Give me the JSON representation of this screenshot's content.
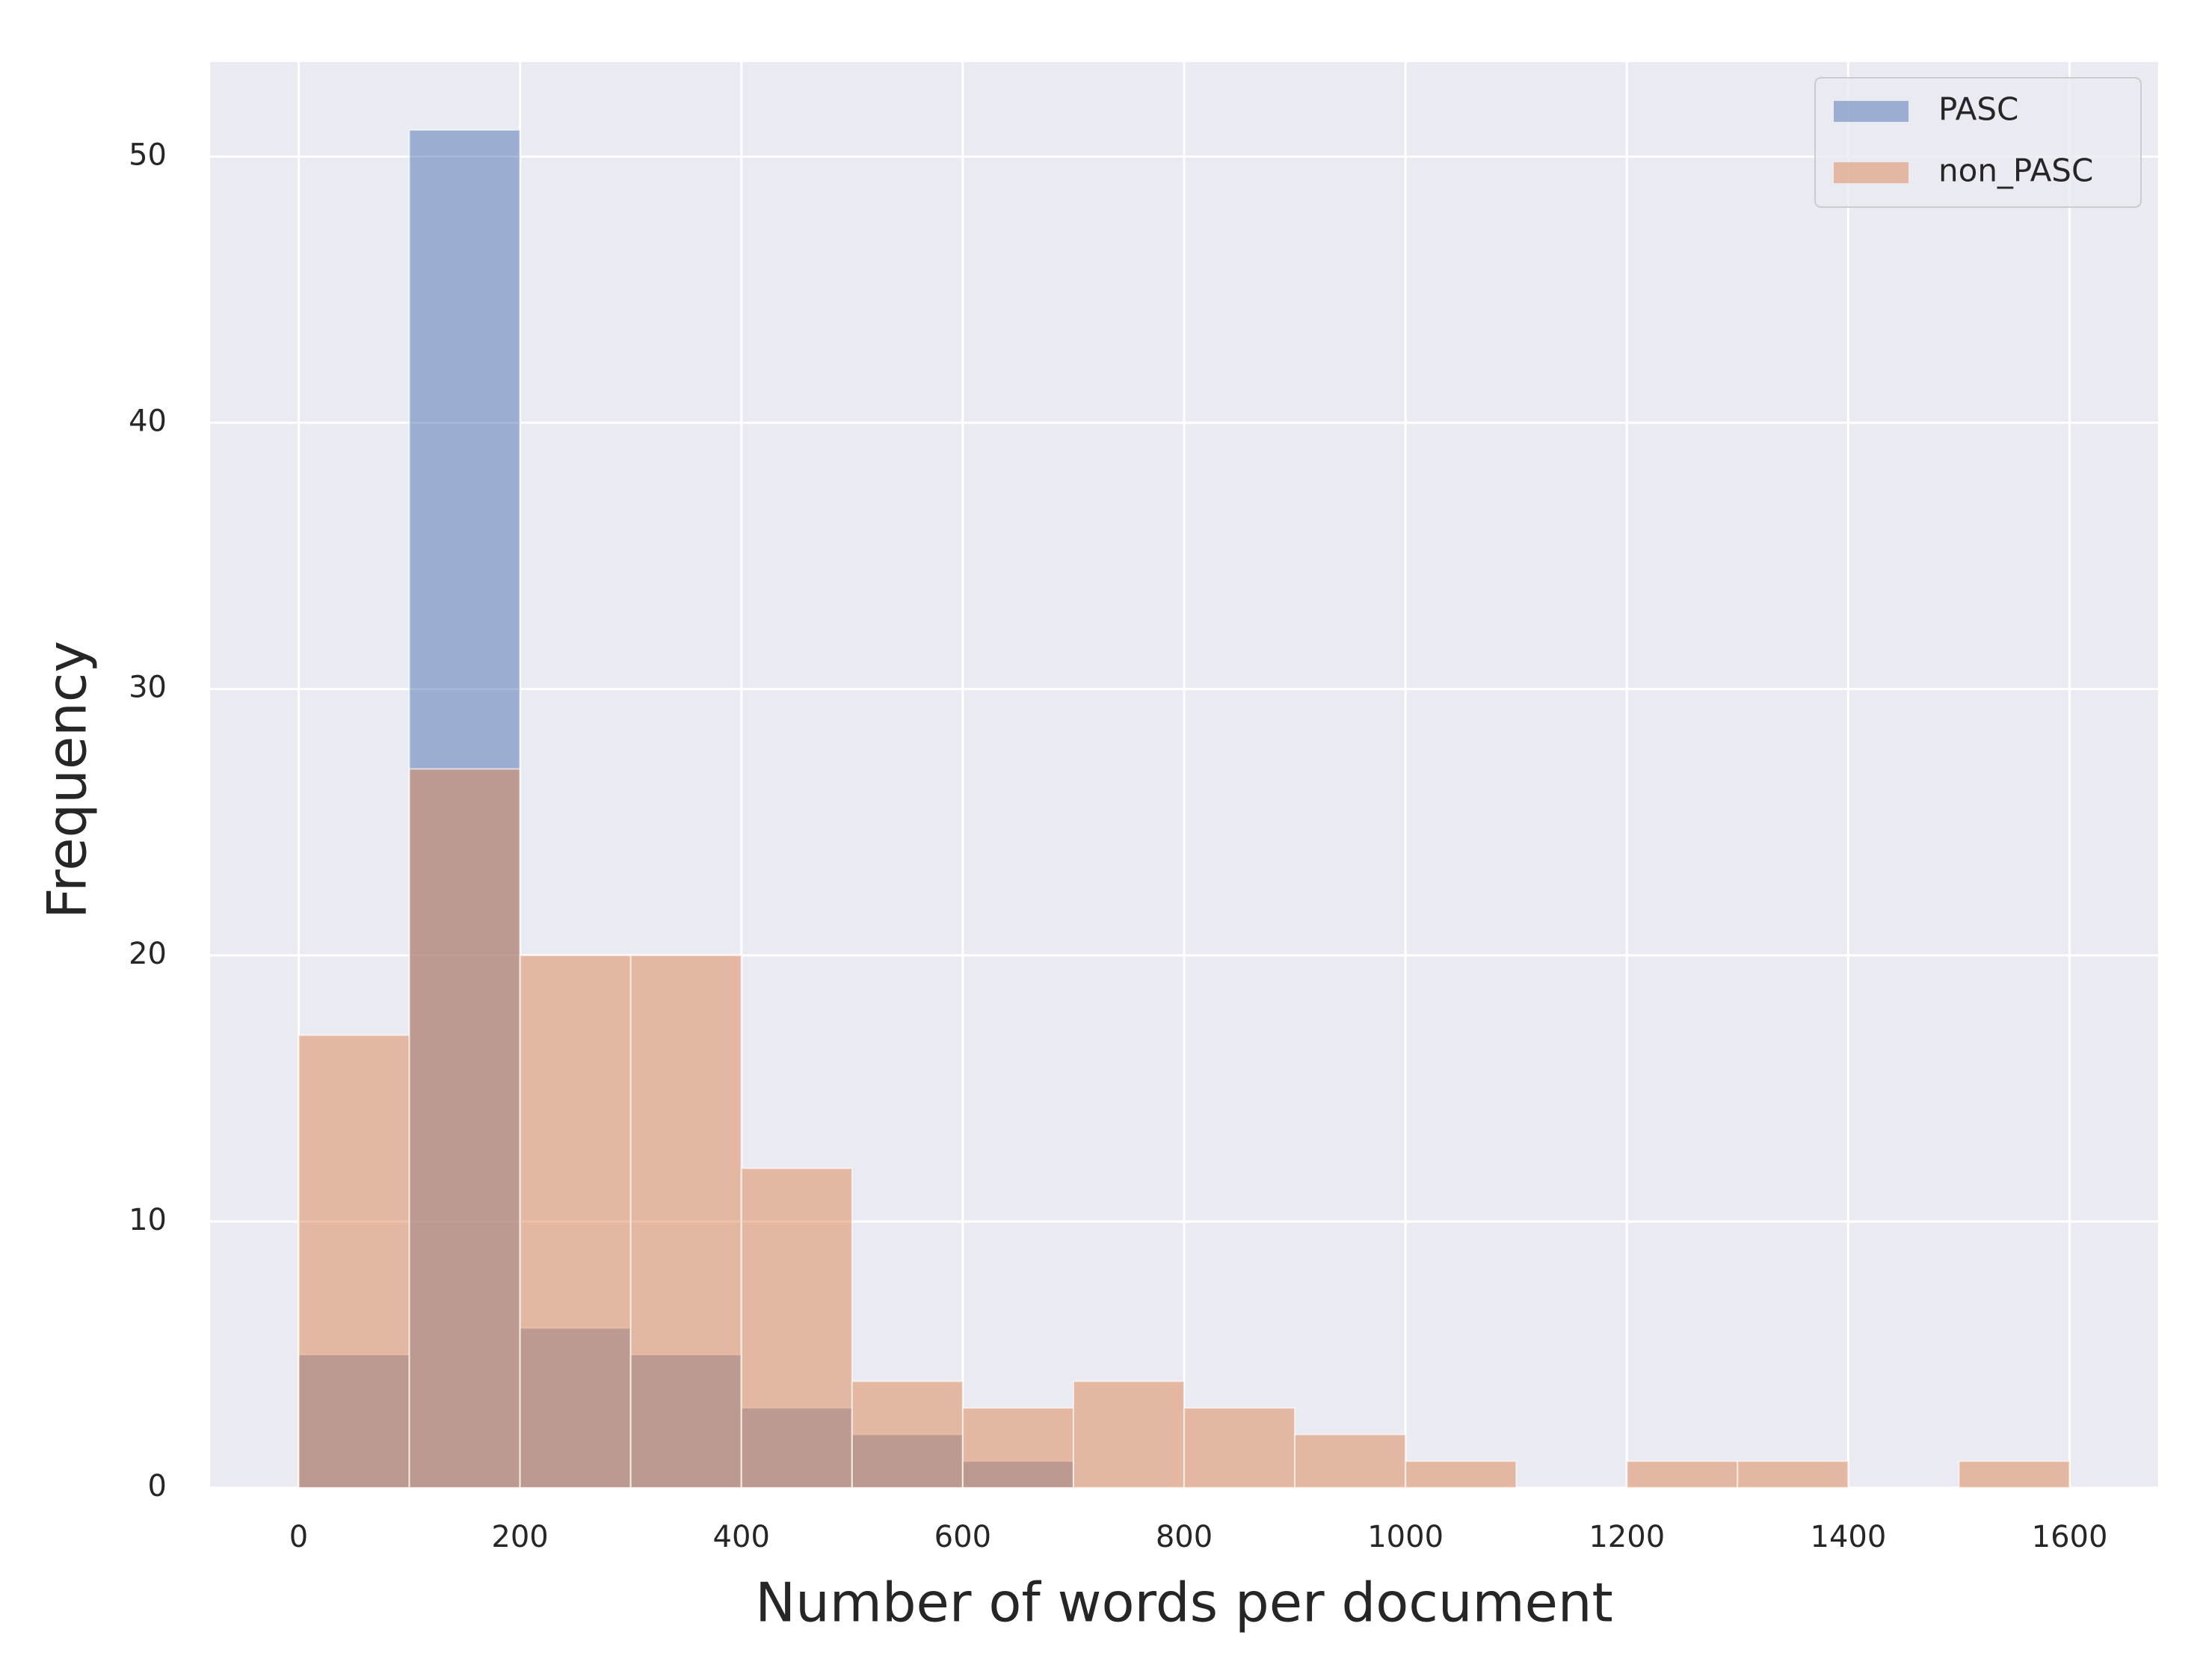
{
  "chart_data": {
    "type": "histogram",
    "xlabel": "Number of words per document",
    "ylabel": "Frequency",
    "bins": [
      0,
      100,
      200,
      300,
      400,
      500,
      600,
      700,
      800,
      900,
      1000,
      1100,
      1200,
      1300,
      1400,
      1500,
      1600
    ],
    "series": [
      {
        "name": "PASC",
        "color": "#4c72b0",
        "values": [
          5,
          51,
          6,
          5,
          3,
          2,
          1,
          0,
          0,
          0,
          0,
          0,
          0,
          0,
          0,
          0
        ]
      },
      {
        "name": "non_PASC",
        "color": "#dd8452",
        "values": [
          17,
          27,
          20,
          20,
          12,
          4,
          3,
          4,
          3,
          2,
          1,
          0,
          1,
          1,
          0,
          1
        ]
      }
    ],
    "opacity": 0.5,
    "xlim": [
      -80,
      1680
    ],
    "ylim": [
      0,
      53.55
    ],
    "xticks": [
      0,
      200,
      400,
      600,
      800,
      1000,
      1200,
      1400,
      1600
    ],
    "yticks": [
      0,
      10,
      20,
      30,
      40,
      50
    ],
    "grid": true,
    "legend": "upper right"
  }
}
